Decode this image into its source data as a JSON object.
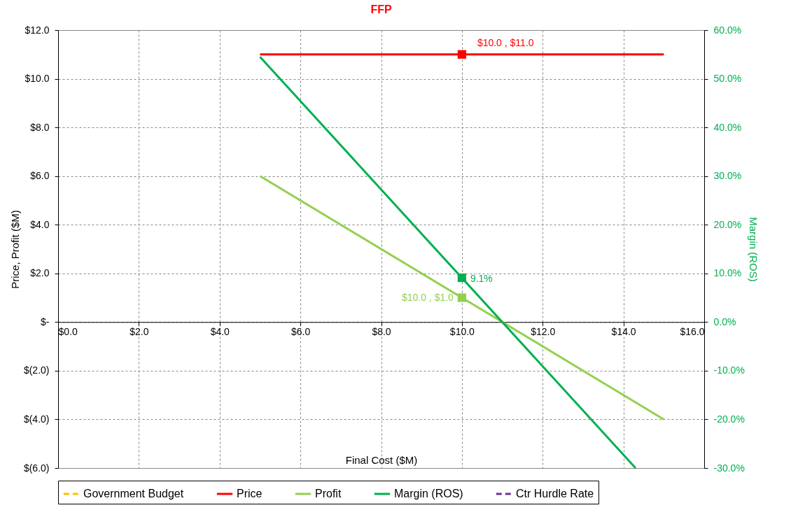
{
  "chart_data": {
    "type": "line",
    "title": "FFP",
    "xlabel": "Final Cost ($M)",
    "ylabel": "Price, Profit ($M)",
    "y2label": "Margin (ROS)",
    "xlim": [
      0,
      16
    ],
    "xticks": [
      {
        "value": 0,
        "label": "$0.0"
      },
      {
        "value": 2,
        "label": "$2.0"
      },
      {
        "value": 4,
        "label": "$4.0"
      },
      {
        "value": 6,
        "label": "$6.0"
      },
      {
        "value": 8,
        "label": "$8.0"
      },
      {
        "value": 10,
        "label": "$10.0"
      },
      {
        "value": 12,
        "label": "$12.0"
      },
      {
        "value": 14,
        "label": "$14.0"
      },
      {
        "value": 16,
        "label": "$16.0"
      }
    ],
    "ylim": [
      -6,
      12
    ],
    "yticks": [
      {
        "value": -6,
        "label": "$(6.0)"
      },
      {
        "value": -4,
        "label": "$(4.0)"
      },
      {
        "value": -2,
        "label": "$(2.0)"
      },
      {
        "value": 0,
        "label": "$-"
      },
      {
        "value": 2,
        "label": "$2.0"
      },
      {
        "value": 4,
        "label": "$4.0"
      },
      {
        "value": 6,
        "label": "$6.0"
      },
      {
        "value": 8,
        "label": "$8.0"
      },
      {
        "value": 10,
        "label": "$10.0"
      },
      {
        "value": 12,
        "label": "$12.0"
      }
    ],
    "y2lim": [
      -30,
      60
    ],
    "y2ticks": [
      {
        "value": -30,
        "label": "-30.0%"
      },
      {
        "value": -20,
        "label": "-20.0%"
      },
      {
        "value": -10,
        "label": "-10.0%"
      },
      {
        "value": 0,
        "label": "0.0%"
      },
      {
        "value": 10,
        "label": "10.0%"
      },
      {
        "value": 20,
        "label": "20.0%"
      },
      {
        "value": 30,
        "label": "30.0%"
      },
      {
        "value": 40,
        "label": "40.0%"
      },
      {
        "value": 50,
        "label": "50.0%"
      },
      {
        "value": 60,
        "label": "60.0%"
      }
    ],
    "grid": true,
    "legend": "bottom",
    "series": [
      {
        "name": "Government Budget",
        "color": "#ffc000",
        "line_style": "dashed"
      },
      {
        "name": "Price",
        "color": "#ff0000",
        "x": [
          5,
          15
        ],
        "values": [
          11,
          11
        ]
      },
      {
        "name": "Profit",
        "color": "#92d050",
        "x": [
          5,
          15
        ],
        "values": [
          6,
          -4
        ]
      },
      {
        "name": "Margin (ROS)",
        "color": "#00b050",
        "axis": "y2",
        "x": [
          5,
          14.3
        ],
        "values": [
          54.5,
          -30
        ]
      },
      {
        "name": "Ctr Hurdle Rate",
        "color": "#7030a0",
        "line_style": "dashed"
      },
      {
        "type": "scatter",
        "color": "#ff0000",
        "marker": "square",
        "x": [
          10
        ],
        "values": [
          11
        ],
        "value_labels": [
          "$10.0 , $11.0"
        ]
      },
      {
        "type": "scatter",
        "color": "#92d050",
        "marker": "square",
        "x": [
          10
        ],
        "values": [
          1
        ],
        "value_labels": [
          "$10.0 , $1.0"
        ]
      },
      {
        "type": "scatter",
        "color": "#00b050",
        "marker": "square",
        "axis": "y2",
        "x": [
          10
        ],
        "values": [
          9.1
        ],
        "value_labels": [
          "9.1%"
        ]
      }
    ]
  }
}
